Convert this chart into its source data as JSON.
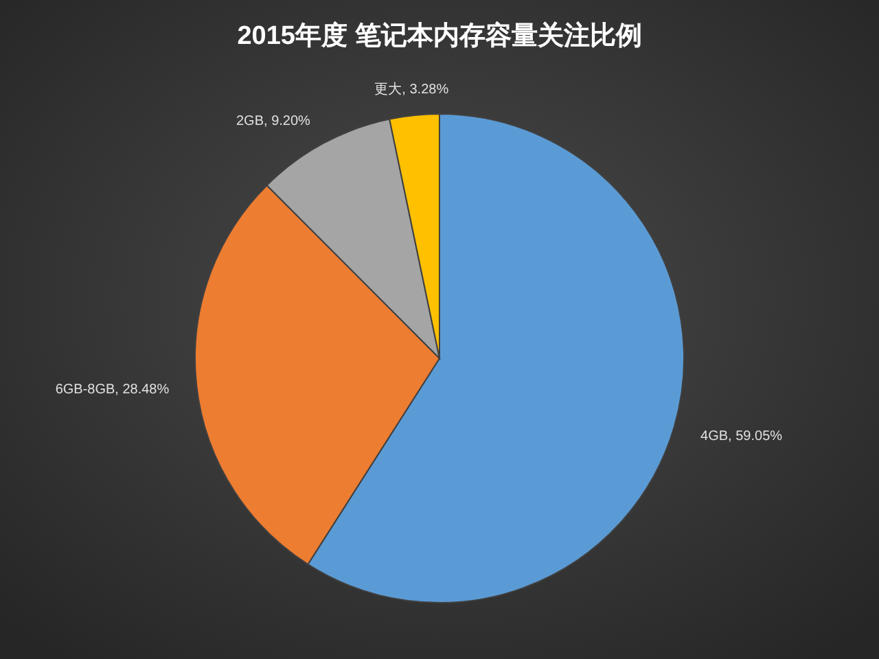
{
  "chart_data": {
    "type": "pie",
    "title": "2015年度 笔记本内存容量关注比例",
    "categories": [
      "4GB",
      "6GB-8GB",
      "2GB",
      "更大"
    ],
    "values": [
      59.05,
      28.48,
      9.2,
      3.28
    ],
    "colors": [
      "#5b9bd5",
      "#ed7d31",
      "#a5a5a5",
      "#ffc000"
    ],
    "value_labels": [
      "59.05%",
      "28.48%",
      "9.20%",
      "3.28%"
    ]
  }
}
